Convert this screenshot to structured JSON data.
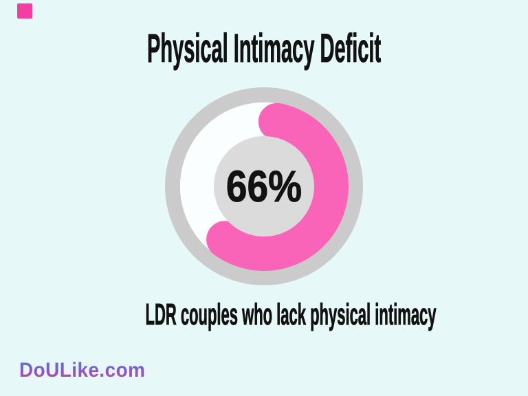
{
  "title": "Physical Intimacy Deficit",
  "caption": "LDR couples who lack physical intimacy",
  "brand": "DoULike.com",
  "chart_data": {
    "type": "donut",
    "title": "Physical Intimacy Deficit",
    "categories": [
      "LDR couples who lack physical intimacy"
    ],
    "values": [
      66
    ],
    "center_label": "66%",
    "start_angle_deg": -5,
    "direction": "clockwise",
    "legend": "none"
  },
  "colors": {
    "background": "#E6F9F8",
    "arc_pink": "#FA64B8",
    "track_ring": "#CBCBCB",
    "center_disc": "#DBDBDB",
    "donut_inner_bg": "#FBFEFE",
    "text": "#121212",
    "corner_square": "#F23FA2",
    "logo_gradient_top": "#4E76DC",
    "logo_gradient_bottom": "#DE3D9E"
  }
}
